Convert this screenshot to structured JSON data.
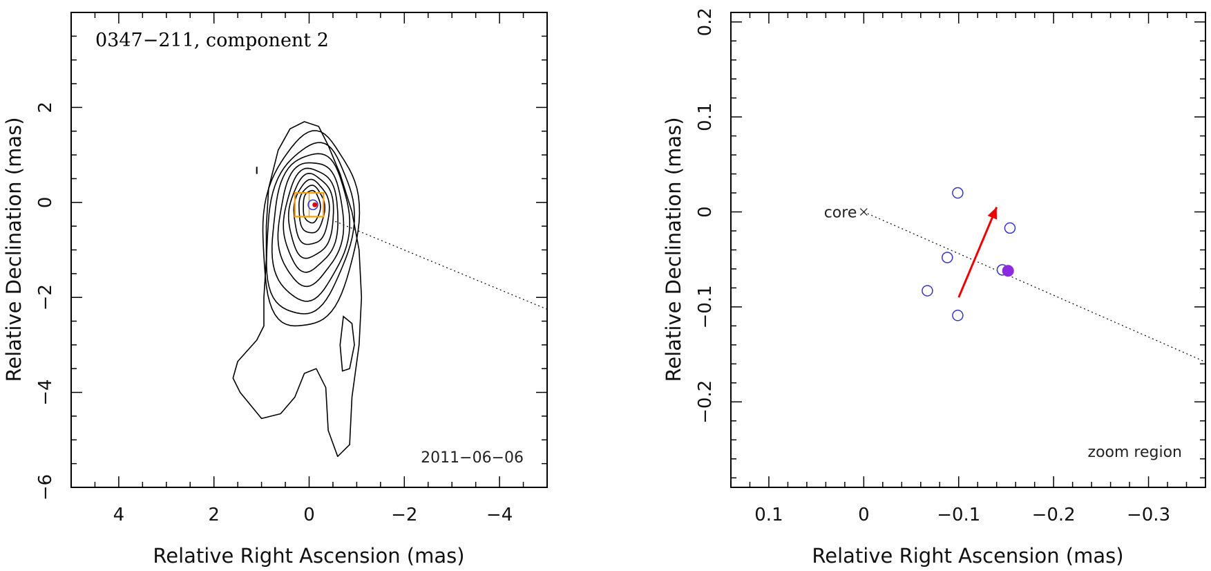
{
  "chart_data": [
    {
      "type": "contour",
      "title": "0347−211, component 2",
      "annotation": "2011−06−06",
      "xlabel": "Relative Right Ascension (mas)",
      "ylabel": "Relative Declination (mas)",
      "xlim": [
        5,
        -5
      ],
      "ylim": [
        -6,
        4
      ],
      "xticks": [
        4,
        2,
        0,
        -2,
        -4
      ],
      "yticks": [
        2,
        0,
        -2,
        -4,
        -6
      ],
      "xtick_labels": [
        "4",
        "2",
        "0",
        "−2",
        "−4"
      ],
      "ytick_labels": [
        "2",
        "0",
        "−2",
        "−4",
        "−6"
      ],
      "grid": false,
      "colors": {
        "contour": "#000000",
        "zoom_box": "#f5a000",
        "component": "#3333cc",
        "core_marker": "#dd0000"
      },
      "zoom_box": {
        "x": [
          0.3,
          -0.3
        ],
        "y": [
          -0.3,
          0.2
        ]
      },
      "direction_line": {
        "x": [
          -0.55,
          -5
        ],
        "y": [
          -0.4,
          -2.25
        ]
      }
    },
    {
      "type": "scatter",
      "annotation": "zoom region",
      "core_label": "core",
      "xlabel": "Relative Right Ascension (mas)",
      "ylabel": "Relative Declination (mas)",
      "xlim": [
        0.14,
        -0.36
      ],
      "ylim": [
        -0.29,
        0.21
      ],
      "xticks": [
        0.1,
        0,
        -0.1,
        -0.2,
        -0.3
      ],
      "yticks": [
        0.2,
        0.1,
        0,
        -0.1,
        -0.2
      ],
      "xtick_labels": [
        "0.1",
        "0",
        "−0.1",
        "−0.2",
        "−0.3"
      ],
      "ytick_labels": [
        "0.2",
        "0.1",
        "0",
        "−0.1",
        "−0.2"
      ],
      "grid": false,
      "colors": {
        "open_points": "#3333cc",
        "filled_point": "#8a2be2",
        "arrow": "#ee0000",
        "line": "#000000"
      },
      "series": [
        {
          "style": "open-circle",
          "x": [
            -0.099,
            -0.154,
            -0.088,
            -0.146,
            -0.067,
            -0.099
          ],
          "y": [
            0.02,
            -0.017,
            -0.048,
            -0.061,
            -0.083,
            -0.109
          ]
        },
        {
          "style": "filled-circle",
          "x": [
            -0.152
          ],
          "y": [
            -0.062
          ]
        }
      ],
      "core": {
        "x": 0,
        "y": 0
      },
      "arrow": {
        "from": [
          -0.1,
          -0.09
        ],
        "to": [
          -0.14,
          0.005
        ]
      },
      "direction_line": {
        "x": [
          0,
          -0.36
        ],
        "y": [
          0,
          -0.158
        ]
      }
    }
  ]
}
